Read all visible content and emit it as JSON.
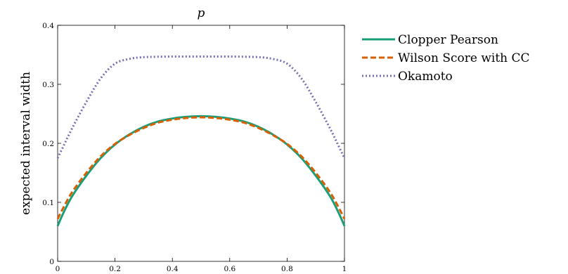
{
  "chart_data": {
    "type": "line",
    "title": "p",
    "xlabel": "",
    "ylabel": "expected interval width",
    "xlim": [
      0,
      1
    ],
    "ylim": [
      0,
      0.4
    ],
    "xticks": [
      "0",
      "0.2",
      "0.4",
      "0.6",
      "0.8",
      "1"
    ],
    "yticks": [
      "0",
      "0.1",
      "0.2",
      "0.3",
      "0.4"
    ],
    "grid": false,
    "legend_position": "outside-right",
    "series": [
      {
        "name": "Clopper Pearson",
        "color": "#1b9e77",
        "style": "solid",
        "x": [
          0,
          0.02,
          0.05,
          0.1,
          0.15,
          0.2,
          0.25,
          0.3,
          0.35,
          0.4,
          0.45,
          0.5,
          0.55,
          0.6,
          0.65,
          0.7,
          0.75,
          0.8,
          0.85,
          0.9,
          0.95,
          0.98,
          1
        ],
        "y": [
          0.06,
          0.082,
          0.11,
          0.145,
          0.175,
          0.198,
          0.215,
          0.228,
          0.237,
          0.242,
          0.245,
          0.246,
          0.245,
          0.242,
          0.237,
          0.228,
          0.215,
          0.198,
          0.175,
          0.145,
          0.11,
          0.082,
          0.06
        ]
      },
      {
        "name": "Wilson Score with CC",
        "color": "#d95f02",
        "style": "dashed",
        "x": [
          0,
          0.02,
          0.05,
          0.1,
          0.15,
          0.2,
          0.25,
          0.3,
          0.35,
          0.4,
          0.45,
          0.5,
          0.55,
          0.6,
          0.65,
          0.7,
          0.75,
          0.8,
          0.85,
          0.9,
          0.95,
          0.98,
          1
        ],
        "y": [
          0.072,
          0.091,
          0.117,
          0.15,
          0.178,
          0.199,
          0.214,
          0.226,
          0.235,
          0.24,
          0.243,
          0.244,
          0.243,
          0.24,
          0.235,
          0.226,
          0.214,
          0.199,
          0.178,
          0.15,
          0.117,
          0.091,
          0.072
        ]
      },
      {
        "name": "Okamoto",
        "color": "#7570b3",
        "style": "dotted",
        "x": [
          0,
          0.02,
          0.05,
          0.1,
          0.15,
          0.2,
          0.25,
          0.3,
          0.4,
          0.5,
          0.6,
          0.7,
          0.75,
          0.8,
          0.85,
          0.9,
          0.95,
          0.98,
          1
        ],
        "y": [
          0.175,
          0.195,
          0.225,
          0.27,
          0.31,
          0.335,
          0.343,
          0.346,
          0.347,
          0.347,
          0.347,
          0.346,
          0.343,
          0.335,
          0.31,
          0.27,
          0.225,
          0.195,
          0.175
        ]
      }
    ]
  }
}
